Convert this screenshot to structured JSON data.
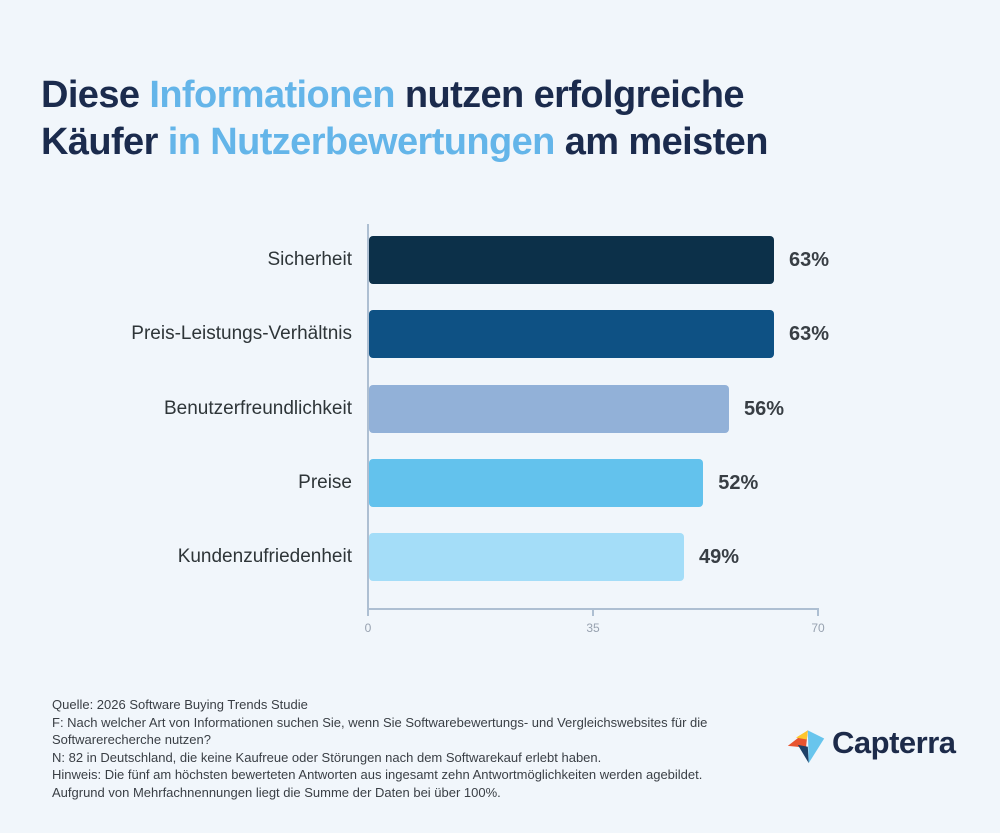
{
  "page": {
    "background_color": "#f1f6fb"
  },
  "title": {
    "dark_color": "#1b2b4d",
    "accent_color": "#64b5e9",
    "lines": [
      {
        "segments": [
          {
            "text": "Diese ",
            "accent": false
          },
          {
            "text": "Informationen",
            "accent": true
          },
          {
            "text": " nutzen erfolgreiche",
            "accent": false
          }
        ]
      },
      {
        "segments": [
          {
            "text": "Käufer ",
            "accent": false
          },
          {
            "text": "in Nutzerbewertungen",
            "accent": true
          },
          {
            "text": " am meisten",
            "accent": false
          }
        ]
      }
    ]
  },
  "chart_data": {
    "type": "bar",
    "orientation": "horizontal",
    "title": "",
    "xlabel": "",
    "ylabel": "",
    "categories": [
      "Sicherheit",
      "Preis-Leistungs-Verhältnis",
      "Benutzerfreundlichkeit",
      "Preise",
      "Kundenzufriedenheit"
    ],
    "values": [
      63,
      63,
      56,
      52,
      49
    ],
    "value_labels": [
      "63%",
      "63%",
      "56%",
      "52%",
      "49%"
    ],
    "bar_colors": [
      "#0c3049",
      "#0e5184",
      "#92b1d8",
      "#63c2ed",
      "#a4ddf8"
    ],
    "xlim": [
      0,
      70
    ],
    "x_tick_values": [
      0,
      35,
      70
    ],
    "x_tick_labels": [
      "0",
      "35",
      "70"
    ],
    "grid": false,
    "legend": false,
    "axis_color": "#aebfd2",
    "tick_label_color": "#98a2b0",
    "category_label_color": "#2e3538",
    "value_label_color": "#383e44"
  },
  "footer": {
    "lines": [
      "Quelle: 2026 Software Buying Trends Studie",
      "F: Nach welcher Art von Informationen suchen Sie, wenn Sie Softwarebewertungs- und Vergleichswebsites für die",
      "Softwarerecherche nutzen?",
      "N: 82 in Deutschland, die keine Kaufreue oder Störungen nach dem Softwarekauf erlebt haben.",
      "Hinweis: Die fünf am höchsten bewerteten Antworten aus ingesamt zehn Antwortmöglichkeiten werden agebildet.",
      "Aufgrund von Mehrfachnennungen liegt die Summe der Daten bei über 100%."
    ]
  },
  "logo": {
    "text": "Capterra",
    "text_color": "#1d2b4a",
    "mark_colors": {
      "orange": "#e8542f",
      "yellow": "#ffc62c",
      "light_blue": "#68c5ed",
      "navy": "#1e4066"
    }
  }
}
